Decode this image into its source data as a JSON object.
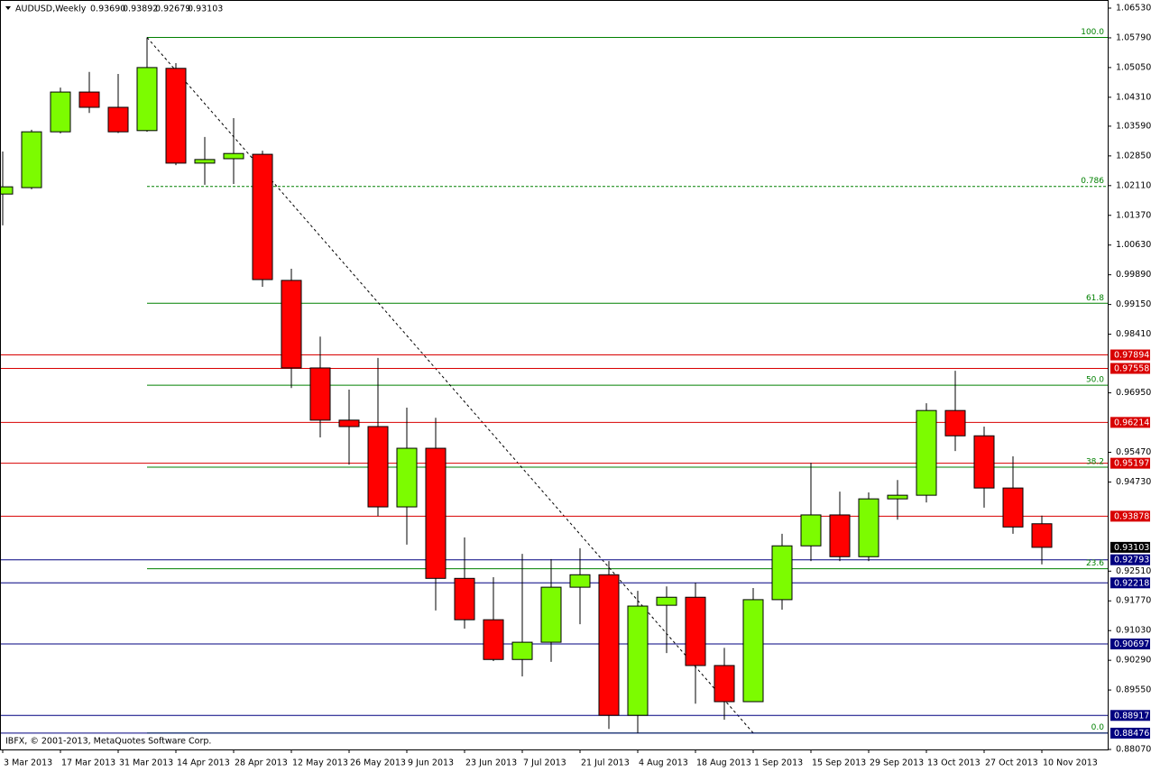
{
  "chart_data": {
    "type": "candlestick",
    "symbol": "AUDUSD,Weekly",
    "header_ohlc": [
      "0.93690",
      "0.93892",
      "0.92679",
      "0.93103"
    ],
    "copyright": "IBFX, © 2001-2013, MetaQuotes Software Corp.",
    "categories": [
      "3 Mar 2013",
      null,
      "17 Mar 2013",
      null,
      "31 Mar 2013",
      null,
      "14 Apr 2013",
      null,
      "28 Apr 2013",
      null,
      "12 May 2013",
      null,
      "26 May 2013",
      null,
      "9 Jun 2013",
      null,
      "23 Jun 2013",
      null,
      "7 Jul 2013",
      null,
      "21 Jul 2013",
      null,
      "4 Aug 2013",
      null,
      "18 Aug 2013",
      null,
      "1 Sep 2013",
      null,
      "15 Sep 2013",
      null,
      "29 Sep 2013",
      null,
      "13 Oct 2013",
      null,
      "27 Oct 2013",
      null,
      "10 Nov 2013"
    ],
    "open": [
      1.019,
      1.0206,
      1.0345,
      1.0444,
      1.0406,
      1.0348,
      1.0503,
      1.0267,
      1.0278,
      1.0289,
      0.9975,
      0.9757,
      0.9627,
      0.9611,
      0.9411,
      0.9557,
      0.9233,
      0.913,
      0.9031,
      0.9074,
      0.9211,
      0.9242,
      0.8892,
      0.9166,
      0.9186,
      0.9016,
      0.8926,
      0.918,
      0.9314,
      0.9391,
      0.9287,
      0.9431,
      0.944,
      0.9651,
      0.9588,
      0.9458,
      0.9369
    ],
    "high": [
      1.0296,
      1.035,
      1.0455,
      1.0494,
      1.0489,
      1.058,
      1.0516,
      1.0332,
      1.0379,
      1.0298,
      1.0004,
      0.9835,
      0.9703,
      0.9782,
      0.9658,
      0.9633,
      0.9335,
      0.9236,
      0.9294,
      0.9281,
      0.9308,
      0.9276,
      0.9202,
      0.9213,
      0.9222,
      0.906,
      0.9209,
      0.9344,
      0.9521,
      0.9449,
      0.9447,
      0.9478,
      0.9669,
      0.975,
      0.9611,
      0.9537,
      0.93892
    ],
    "low": [
      1.0112,
      1.0202,
      1.0341,
      1.0392,
      1.0342,
      1.0345,
      1.0262,
      1.0213,
      1.0215,
      0.9959,
      0.9707,
      0.9584,
      0.9516,
      0.9388,
      0.9317,
      0.9153,
      0.9108,
      0.9027,
      0.8989,
      0.9025,
      0.9119,
      0.8858,
      0.8848,
      0.9047,
      0.8921,
      0.8881,
      0.8926,
      0.9155,
      0.9276,
      0.9276,
      0.9276,
      0.9379,
      0.9422,
      0.955,
      0.9409,
      0.9344,
      0.92679
    ],
    "close": [
      1.0208,
      1.0345,
      1.0444,
      1.0406,
      1.0345,
      1.0505,
      1.0267,
      1.0276,
      1.0291,
      0.9977,
      0.9757,
      0.9627,
      0.9611,
      0.9411,
      0.9557,
      0.9233,
      0.913,
      0.9031,
      0.9074,
      0.9211,
      0.9242,
      0.8892,
      0.9164,
      0.9186,
      0.9016,
      0.8926,
      0.918,
      0.9314,
      0.9391,
      0.9287,
      0.9431,
      0.944,
      0.9651,
      0.9588,
      0.9458,
      0.9361,
      0.93103
    ],
    "up_color": "#7cfc00",
    "down_color": "#ff0000",
    "ylim": [
      0.8807,
      1.0653
    ],
    "yticks": [
      {
        "value": 1.0653,
        "label": "1.06530"
      },
      {
        "value": 1.0579,
        "label": "1.05790"
      },
      {
        "value": 1.0505,
        "label": "1.05050"
      },
      {
        "value": 1.0431,
        "label": "1.04310"
      },
      {
        "value": 1.0359,
        "label": "1.03590"
      },
      {
        "value": 1.0285,
        "label": "1.02850"
      },
      {
        "value": 1.0211,
        "label": "1.02110"
      },
      {
        "value": 1.0137,
        "label": "1.01370"
      },
      {
        "value": 1.0063,
        "label": "1.00630"
      },
      {
        "value": 0.9989,
        "label": "0.99890"
      },
      {
        "value": 0.9915,
        "label": "0.99150"
      },
      {
        "value": 0.9841,
        "label": "0.98410"
      },
      {
        "value": 0.9695,
        "label": "0.96950"
      },
      {
        "value": 0.9547,
        "label": "0.95470"
      },
      {
        "value": 0.9473,
        "label": "0.94730"
      },
      {
        "value": 0.9251,
        "label": "0.92510"
      },
      {
        "value": 0.9177,
        "label": "0.91770"
      },
      {
        "value": 0.9103,
        "label": "0.91030"
      },
      {
        "value": 0.9029,
        "label": "0.90290"
      },
      {
        "value": 0.8955,
        "label": "0.89550"
      },
      {
        "value": 0.8807,
        "label": "0.88070"
      }
    ],
    "grid": false,
    "price_lines": [
      {
        "value": 0.97894,
        "color": "#d80000"
      },
      {
        "value": 0.97558,
        "color": "#d80000"
      },
      {
        "value": 0.96214,
        "color": "#d80000"
      },
      {
        "value": 0.95197,
        "color": "#d80000"
      },
      {
        "value": 0.93878,
        "color": "#d80000"
      },
      {
        "value": 0.92793,
        "color": "#000080"
      },
      {
        "value": 0.92218,
        "color": "#000080"
      },
      {
        "value": 0.90697,
        "color": "#000080"
      },
      {
        "value": 0.88917,
        "color": "#000080"
      },
      {
        "value": 0.88476,
        "color": "#000080"
      }
    ],
    "current_price": 0.93103,
    "fib_color": "#008000",
    "fib_levels": [
      {
        "label": "100.0",
        "price": 1.058
      },
      {
        "label": "0.786",
        "price": 1.0209,
        "dashed": true
      },
      {
        "label": "61.8",
        "price": 0.9918
      },
      {
        "label": "50.0",
        "price": 0.9714
      },
      {
        "label": "38.2",
        "price": 0.951
      },
      {
        "label": "23.6",
        "price": 0.9257
      },
      {
        "label": "0.0",
        "price": 0.8848
      }
    ]
  }
}
